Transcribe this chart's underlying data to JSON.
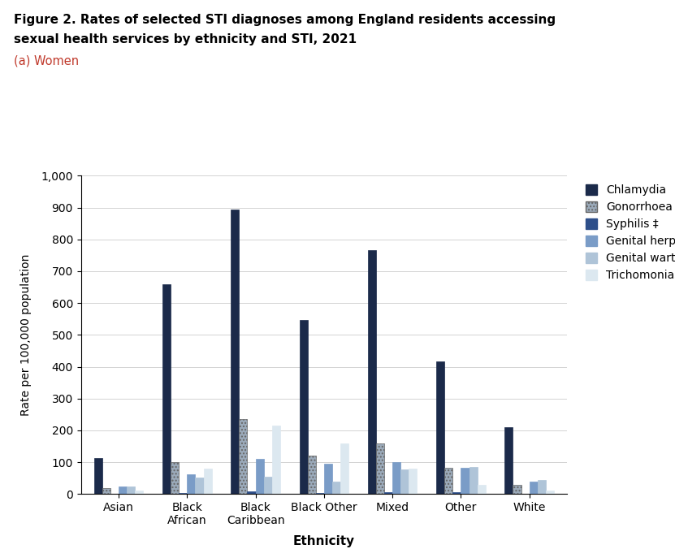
{
  "title_line1": "Figure 2. Rates of selected STI diagnoses among England residents accessing",
  "title_line2": "sexual health services by ethnicity and STI, 2021",
  "subtitle": "(a) Women",
  "xlabel": "Ethnicity",
  "ylabel": "Rate per 100,000 population",
  "ylim": [
    0,
    1000
  ],
  "yticks": [
    0,
    100,
    200,
    300,
    400,
    500,
    600,
    700,
    800,
    900,
    1000
  ],
  "ytick_labels": [
    "0",
    "100",
    "200",
    "300",
    "400",
    "500",
    "600",
    "700",
    "800",
    "900",
    "1,000"
  ],
  "categories": [
    "Asian",
    "Black\nAfrican",
    "Black\nCaribbean",
    "Black Other",
    "Mixed",
    "Other",
    "White"
  ],
  "series": {
    "Chlamydia": [
      113,
      660,
      893,
      548,
      765,
      418,
      210
    ],
    "Gonorrhoea": [
      18,
      100,
      235,
      120,
      160,
      83,
      30
    ],
    "Syphilis ‡": [
      2,
      3,
      8,
      3,
      5,
      5,
      2
    ],
    "Genital herpes*": [
      25,
      62,
      110,
      95,
      100,
      83,
      40
    ],
    "Genital warts*": [
      25,
      52,
      55,
      40,
      78,
      85,
      45
    ],
    "Trichomoniasis": [
      10,
      80,
      215,
      158,
      80,
      30,
      12
    ]
  },
  "color_chlamydia": "#1b2a4a",
  "color_gonorrhoea": "#9baaba",
  "color_syphilis": "#2e4f8a",
  "color_herpes": "#7a9cc7",
  "color_warts": "#afc4d8",
  "color_tricho": "#dce8f0",
  "bar_width": 0.12,
  "background_color": "#ffffff",
  "title_fontsize": 11,
  "subtitle_fontsize": 10.5,
  "axis_label_fontsize": 11,
  "tick_fontsize": 10,
  "legend_fontsize": 10
}
